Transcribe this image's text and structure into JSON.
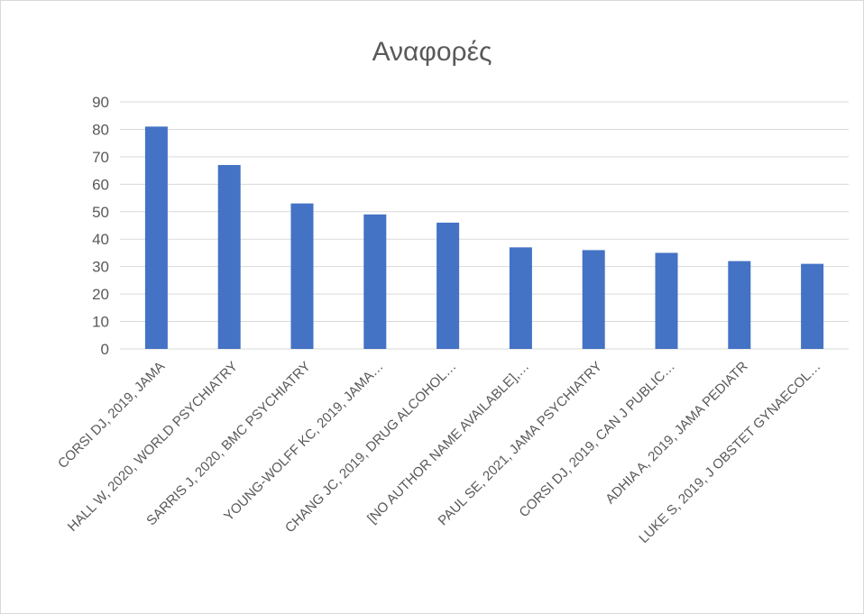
{
  "chart_data": {
    "type": "bar",
    "title": "Αναφορές",
    "xlabel": "",
    "ylabel": "",
    "ylim": [
      0,
      90
    ],
    "yticks": [
      0,
      10,
      20,
      30,
      40,
      50,
      60,
      70,
      80,
      90
    ],
    "grid": true,
    "legend": "none",
    "bar_color": "#4472C4",
    "categories": [
      "CORSI DJ, 2019, JAMA",
      "HALL W, 2020, WORLD PSYCHIATRY",
      "SARRIS J, 2020, BMC PSYCHIATRY",
      "YOUNG-WOLFF KC, 2019, JAMA…",
      "CHANG JC, 2019, DRUG ALCOHOL…",
      "[NO AUTHOR NAME AVAILABLE],…",
      "PAUL SE, 2021, JAMA PSYCHIATRY",
      "CORSI DJ, 2019, CAN J PUBLIC…",
      "ADHIA A, 2019, JAMA PEDIATR",
      "LUKE S, 2019, J OBSTET GYNAECOL…"
    ],
    "values": [
      81,
      67,
      53,
      49,
      46,
      37,
      36,
      35,
      32,
      31
    ]
  }
}
